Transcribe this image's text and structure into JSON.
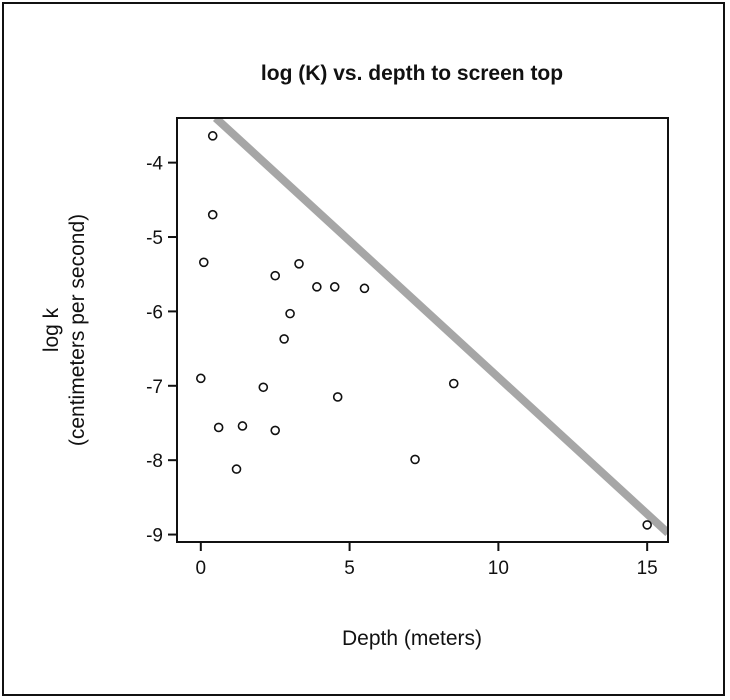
{
  "chart_data": {
    "type": "scatter",
    "title": "log (K) vs. depth to screen top",
    "xlabel": "Depth (meters)",
    "ylabel_line1": "log k",
    "ylabel_line2": "(centimeters per second)",
    "xlim": [
      -0.8,
      15.7
    ],
    "ylim": [
      -9.1,
      -3.4
    ],
    "xticks": [
      0,
      5,
      10,
      15
    ],
    "yticks": [
      -4,
      -5,
      -6,
      -7,
      -8,
      -9
    ],
    "grid": false,
    "points": [
      {
        "x": 0.4,
        "y": -3.64
      },
      {
        "x": 0.4,
        "y": -4.7
      },
      {
        "x": 0.1,
        "y": -5.34
      },
      {
        "x": 0.0,
        "y": -6.9
      },
      {
        "x": 0.6,
        "y": -7.56
      },
      {
        "x": 1.2,
        "y": -8.12
      },
      {
        "x": 1.4,
        "y": -7.54
      },
      {
        "x": 2.1,
        "y": -7.02
      },
      {
        "x": 2.5,
        "y": -5.52
      },
      {
        "x": 2.5,
        "y": -7.6
      },
      {
        "x": 2.8,
        "y": -6.37
      },
      {
        "x": 3.0,
        "y": -6.03
      },
      {
        "x": 3.3,
        "y": -5.36
      },
      {
        "x": 3.9,
        "y": -5.67
      },
      {
        "x": 4.5,
        "y": -5.67
      },
      {
        "x": 4.6,
        "y": -7.15
      },
      {
        "x": 5.5,
        "y": -5.69
      },
      {
        "x": 7.2,
        "y": -7.99
      },
      {
        "x": 8.5,
        "y": -6.97
      },
      {
        "x": 15.0,
        "y": -8.87
      }
    ],
    "reference_line": {
      "x": [
        0.5,
        15.7
      ],
      "y": [
        -3.4,
        -8.98
      ],
      "color": "#a6a6a6"
    },
    "colors": {
      "points": "#111111",
      "axes": "#111111"
    }
  }
}
